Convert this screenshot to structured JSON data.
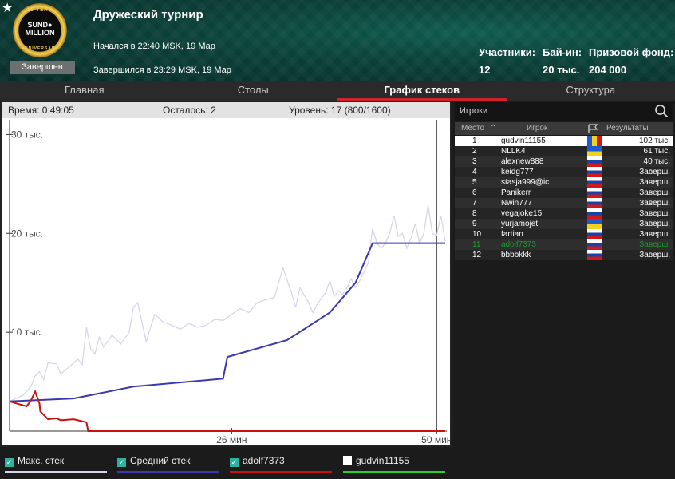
{
  "header": {
    "logo": {
      "top": "15 YEAR",
      "mid1": "SUND",
      "mid2": "MILLION",
      "bot": "ANNIVERSARY"
    },
    "status_badge": "Завершен",
    "title": "Дружеский турнир",
    "started": "Начался в 22:40 MSK, 19 Мар",
    "finished": "Завершился в 23:29 MSK, 19 Мар",
    "stats": [
      {
        "label": "Участники:",
        "value": "12"
      },
      {
        "label": "Бай-ин:",
        "value": "20 тыс."
      },
      {
        "label": "Призовой фонд:",
        "value": "204 000"
      }
    ]
  },
  "tabs": [
    "Главная",
    "Столы",
    "График стеков",
    "Структура"
  ],
  "active_tab": "График стеков",
  "info": {
    "time": "Время: 0:49:05",
    "remaining": "Осталось: 2",
    "level": "Уровень: 17 (800/1600)"
  },
  "chart_data": {
    "type": "line",
    "x_unit": "минуты",
    "xlim": [
      0,
      51
    ],
    "ylim": [
      0,
      31000
    ],
    "y_ticks": [
      {
        "value": 30000,
        "label": "30 тыс."
      },
      {
        "value": 20000,
        "label": "20 тыс."
      },
      {
        "value": 10000,
        "label": "10 тыс."
      }
    ],
    "x_ticks": [
      {
        "value": 26,
        "label": "26 мин"
      },
      {
        "value": 50,
        "label": "50 мин"
      }
    ],
    "series": [
      {
        "name": "Макс. стек",
        "color": "#d6d6ea",
        "points": [
          [
            0,
            3000
          ],
          [
            1.5,
            3600
          ],
          [
            2.5,
            4500
          ],
          [
            3,
            5600
          ],
          [
            3.5,
            6000
          ],
          [
            4,
            5200
          ],
          [
            4.5,
            6900
          ],
          [
            5.5,
            6800
          ],
          [
            6,
            5800
          ],
          [
            7,
            6500
          ],
          [
            8,
            7300
          ],
          [
            8.5,
            6700
          ],
          [
            9,
            10500
          ],
          [
            9.5,
            8300
          ],
          [
            10,
            7800
          ],
          [
            10.5,
            9500
          ],
          [
            11,
            8500
          ],
          [
            12,
            9700
          ],
          [
            13,
            8800
          ],
          [
            14,
            10000
          ],
          [
            14.5,
            12500
          ],
          [
            15,
            13000
          ],
          [
            15.5,
            11000
          ],
          [
            16,
            9000
          ],
          [
            16.5,
            10500
          ],
          [
            17,
            11800
          ],
          [
            18,
            11000
          ],
          [
            19,
            10700
          ],
          [
            20,
            10300
          ],
          [
            21,
            10900
          ],
          [
            22,
            10500
          ],
          [
            23,
            10700
          ],
          [
            24,
            11300
          ],
          [
            25,
            11200
          ],
          [
            26,
            11800
          ],
          [
            27,
            12400
          ],
          [
            28,
            12000
          ],
          [
            29,
            13000
          ],
          [
            30,
            13300
          ],
          [
            31,
            13500
          ],
          [
            32,
            16500
          ],
          [
            33,
            14000
          ],
          [
            33.5,
            12500
          ],
          [
            34,
            14500
          ],
          [
            35,
            13000
          ],
          [
            35.5,
            12000
          ],
          [
            36,
            12800
          ],
          [
            37,
            14000
          ],
          [
            37.5,
            15200
          ],
          [
            38,
            13600
          ],
          [
            38.5,
            14200
          ],
          [
            39,
            13800
          ],
          [
            39.5,
            14500
          ],
          [
            40,
            15400
          ],
          [
            40.5,
            14500
          ],
          [
            41,
            15200
          ],
          [
            42,
            17000
          ],
          [
            42.5,
            20500
          ],
          [
            43,
            19000
          ],
          [
            43.5,
            18500
          ],
          [
            44,
            19000
          ],
          [
            44.5,
            20000
          ],
          [
            45,
            21800
          ],
          [
            45.5,
            19700
          ],
          [
            46,
            20000
          ],
          [
            46.5,
            18500
          ],
          [
            47,
            19500
          ],
          [
            47.5,
            21000
          ],
          [
            48,
            19000
          ],
          [
            48.5,
            20000
          ],
          [
            49,
            22800
          ],
          [
            49.5,
            20000
          ],
          [
            50,
            19800
          ],
          [
            50.5,
            21800
          ],
          [
            51,
            19200
          ]
        ]
      },
      {
        "name": "Средний стек",
        "color": "#3a3ab0",
        "points": [
          [
            0,
            3000
          ],
          [
            7.5,
            3300
          ],
          [
            14.5,
            4500
          ],
          [
            25,
            5300
          ],
          [
            25.5,
            7500
          ],
          [
            32.5,
            9200
          ],
          [
            37.5,
            12000
          ],
          [
            40.5,
            15000
          ],
          [
            42.5,
            19000
          ],
          [
            51,
            19000
          ]
        ]
      },
      {
        "name": "adolf7373",
        "color": "#cc1010",
        "points": [
          [
            0,
            3000
          ],
          [
            2,
            2500
          ],
          [
            2.5,
            3100
          ],
          [
            3,
            4000
          ],
          [
            3.5,
            2800
          ],
          [
            3.6,
            2000
          ],
          [
            4.5,
            1200
          ],
          [
            5.5,
            1300
          ],
          [
            6,
            1100
          ],
          [
            7.5,
            1200
          ],
          [
            8,
            1100
          ],
          [
            9,
            900
          ],
          [
            9.2,
            0
          ],
          [
            51,
            0
          ]
        ]
      },
      {
        "name": "gudvin11155",
        "color": "#2bcf2b",
        "points": []
      }
    ],
    "legend_placement": "bottom"
  },
  "legend": [
    {
      "label": "Макс. стек",
      "checked": true,
      "color": "#d6d6ea"
    },
    {
      "label": "Средний стек",
      "checked": true,
      "color": "#3a3ab0"
    },
    {
      "label": "adolf7373",
      "checked": true,
      "color": "#cc1010"
    },
    {
      "label": "gudvin11155",
      "checked": false,
      "color": "#2bcf2b"
    }
  ],
  "players": {
    "search_label": "Игроки",
    "columns": {
      "place": "Место",
      "player": "Игрок",
      "results": "Результаты"
    },
    "rows": [
      {
        "place": "1",
        "name": "gudvin11155",
        "result": "102 тыс.",
        "flag": "md"
      },
      {
        "place": "2",
        "name": "NLLK4",
        "result": "61 тыс.",
        "flag": "ua"
      },
      {
        "place": "3",
        "name": "alexnew888",
        "result": "40 тыс.",
        "flag": "ru"
      },
      {
        "place": "4",
        "name": "keidg777",
        "result": "Заверш.",
        "flag": "ru"
      },
      {
        "place": "5",
        "name": "stasja999@ic",
        "result": "Заверш.",
        "flag": "ru"
      },
      {
        "place": "6",
        "name": "Panikerr",
        "result": "Заверш.",
        "flag": "ru"
      },
      {
        "place": "7",
        "name": "Nwin777",
        "result": "Заверш.",
        "flag": "ru"
      },
      {
        "place": "8",
        "name": "vegajoke15",
        "result": "Заверш.",
        "flag": "ru"
      },
      {
        "place": "9",
        "name": "yurjamojet",
        "result": "Заверш.",
        "flag": "ua"
      },
      {
        "place": "10",
        "name": "fartian",
        "result": "Заверш.",
        "flag": "ru"
      },
      {
        "place": "11",
        "name": "adolf7373",
        "result": "Заверш.",
        "flag": "ru"
      },
      {
        "place": "12",
        "name": "bbbbkkk",
        "result": "Заверш.",
        "flag": "ru"
      }
    ]
  }
}
